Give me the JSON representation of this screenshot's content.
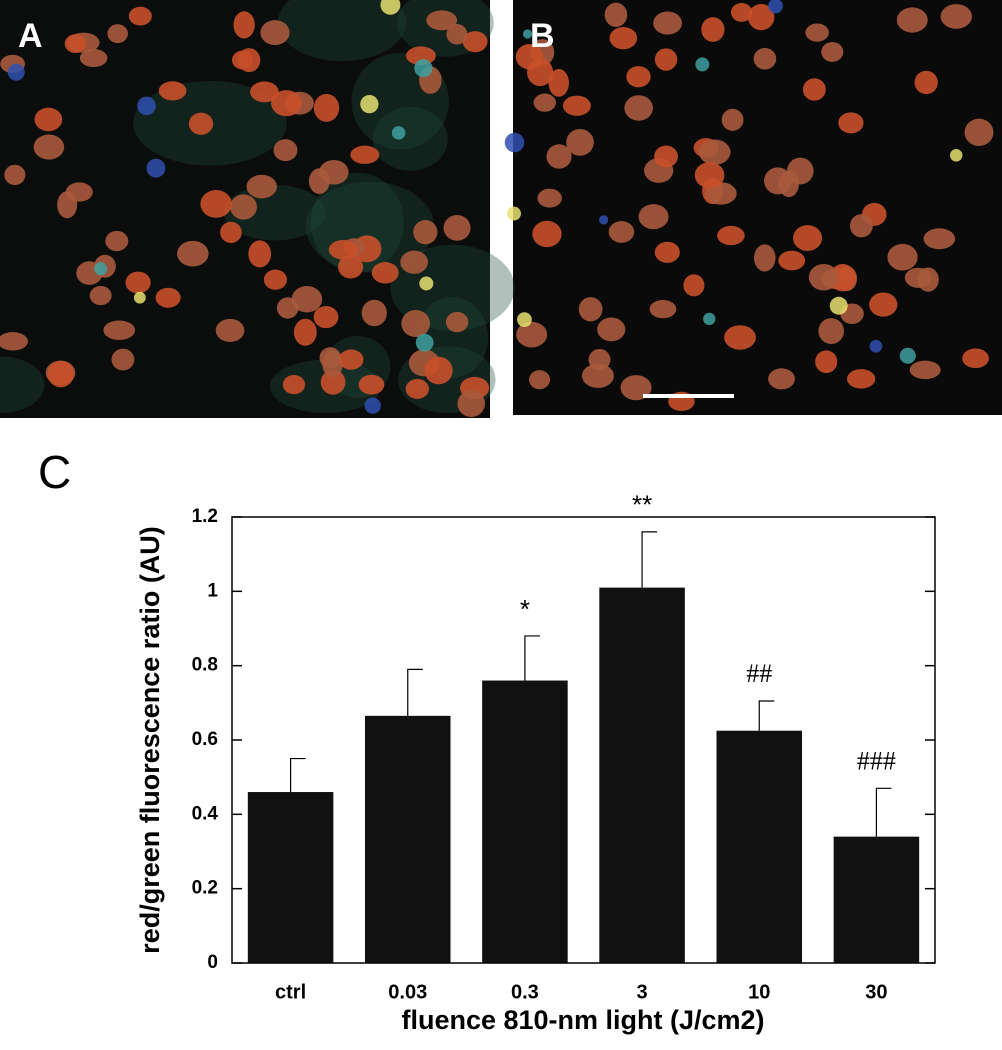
{
  "panel_labels": [
    "A",
    "B",
    "C"
  ],
  "chart_data": {
    "type": "bar",
    "x_label": "fluence 810-nm light (J/cm2)",
    "y_label": "red/green fluorescence ratio  (AU)",
    "categories": [
      "ctrl",
      "0.03",
      "0.3",
      "3",
      "10",
      "30"
    ],
    "values": [
      0.46,
      0.665,
      0.76,
      1.01,
      0.625,
      0.34
    ],
    "errors": [
      0.09,
      0.125,
      0.12,
      0.15,
      0.08,
      0.13
    ],
    "bar_annotations": [
      null,
      null,
      "*",
      "**",
      "##",
      "###"
    ],
    "color": "#111111",
    "ylim": [
      0,
      1.2
    ],
    "yticks": [
      0,
      0.2,
      0.4,
      0.6,
      0.8,
      1,
      1.2
    ],
    "grid": false
  }
}
